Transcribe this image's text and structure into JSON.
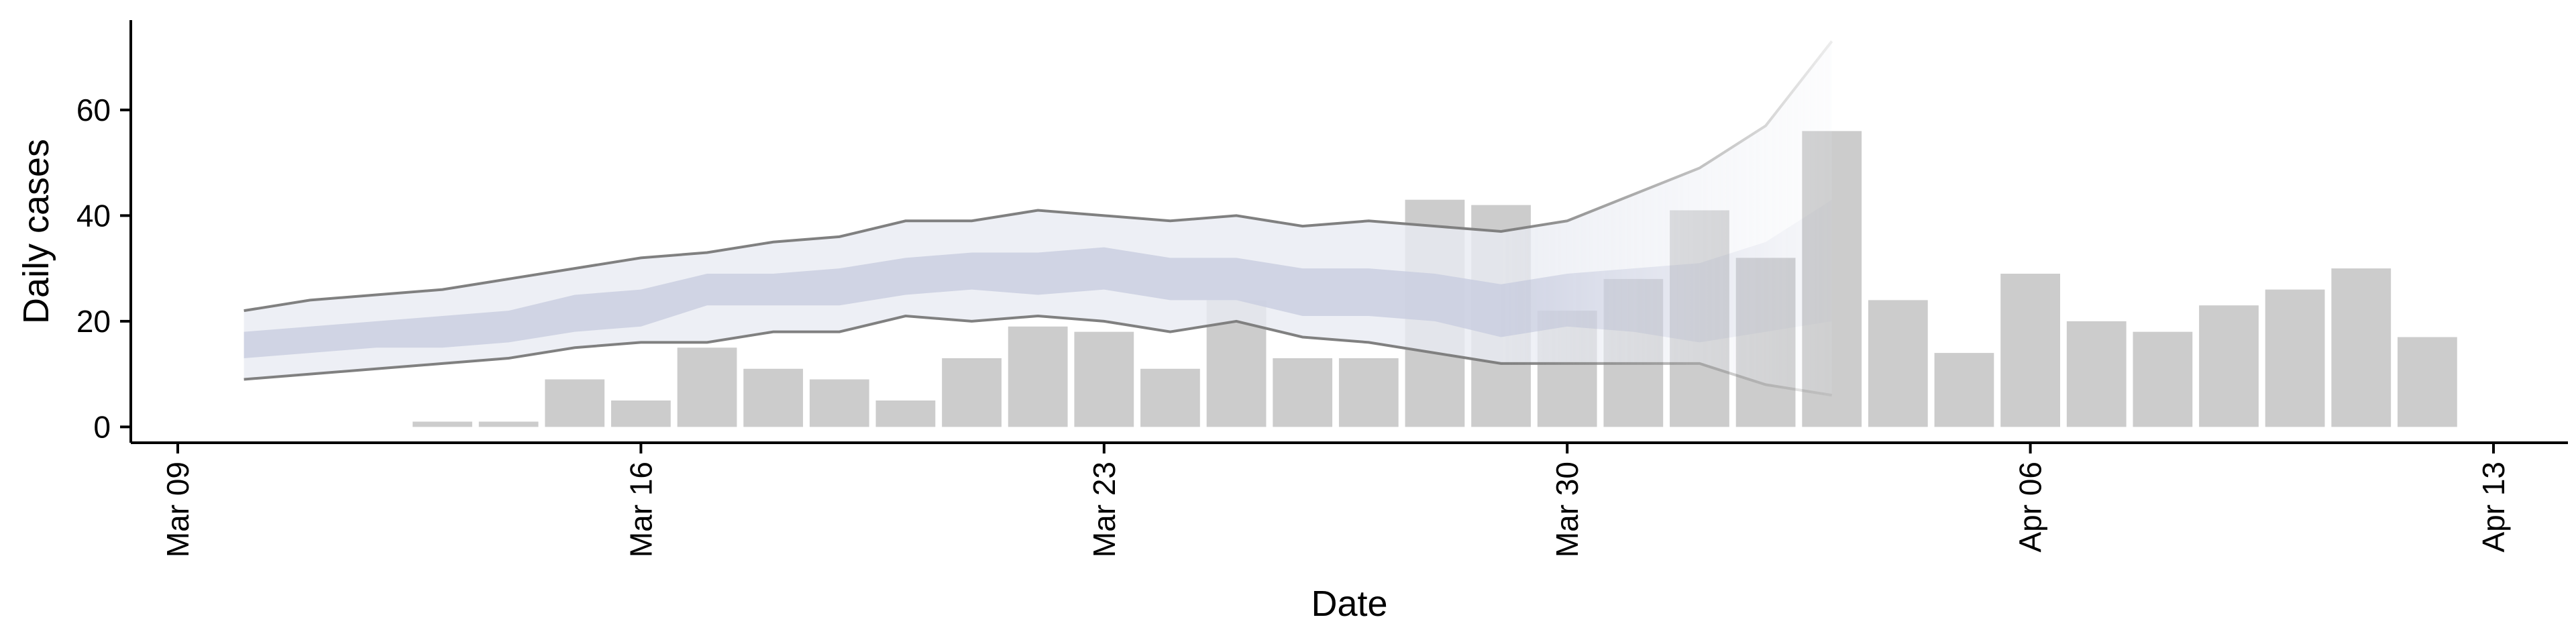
{
  "chart_data": {
    "type": "bar",
    "xlabel": "Date",
    "ylabel": "Daily cases",
    "x_range": [
      "2020-03-08",
      "2020-04-13"
    ],
    "ylim": [
      -3,
      77
    ],
    "grid": false,
    "legend": "none",
    "x_ticks": [
      {
        "date": "2020-03-09",
        "label": "Mar 09"
      },
      {
        "date": "2020-03-16",
        "label": "Mar 16"
      },
      {
        "date": "2020-03-23",
        "label": "Mar 23"
      },
      {
        "date": "2020-03-30",
        "label": "Mar 30"
      },
      {
        "date": "2020-04-06",
        "label": "Apr 06"
      },
      {
        "date": "2020-04-13",
        "label": "Apr 13"
      }
    ],
    "y_ticks": [
      0,
      20,
      40,
      60
    ],
    "bars": {
      "color": "#cccccc",
      "dates": [
        "2020-03-13",
        "2020-03-14",
        "2020-03-15",
        "2020-03-16",
        "2020-03-17",
        "2020-03-18",
        "2020-03-19",
        "2020-03-20",
        "2020-03-21",
        "2020-03-22",
        "2020-03-23",
        "2020-03-24",
        "2020-03-25",
        "2020-03-26",
        "2020-03-27",
        "2020-03-28",
        "2020-03-29",
        "2020-03-30",
        "2020-03-31",
        "2020-04-01",
        "2020-04-02",
        "2020-04-03",
        "2020-04-04",
        "2020-04-05",
        "2020-04-06",
        "2020-04-07",
        "2020-04-08",
        "2020-04-09",
        "2020-04-10",
        "2020-04-11",
        "2020-04-12"
      ],
      "values": [
        1,
        1,
        9,
        5,
        15,
        11,
        9,
        5,
        13,
        19,
        18,
        11,
        24,
        13,
        13,
        43,
        42,
        22,
        28,
        41,
        32,
        56,
        24,
        14,
        29,
        20,
        18,
        23,
        26,
        30,
        17
      ]
    },
    "estimate": {
      "band_colors": {
        "outer": "#e9ebf2",
        "inner": "#c6cbde",
        "line": "#808080"
      },
      "dates": [
        "2020-03-10",
        "2020-03-11",
        "2020-03-12",
        "2020-03-13",
        "2020-03-14",
        "2020-03-15",
        "2020-03-16",
        "2020-03-17",
        "2020-03-18",
        "2020-03-19",
        "2020-03-20",
        "2020-03-21",
        "2020-03-22",
        "2020-03-23",
        "2020-03-24",
        "2020-03-25",
        "2020-03-26",
        "2020-03-27",
        "2020-03-28",
        "2020-03-29",
        "2020-03-30",
        "2020-03-31",
        "2020-04-01",
        "2020-04-02",
        "2020-04-03"
      ],
      "outer_upper": [
        22,
        24,
        25,
        26,
        28,
        30,
        32,
        33,
        35,
        36,
        39,
        39,
        41,
        40,
        39,
        40,
        38,
        39,
        38,
        37,
        39,
        44,
        49,
        57,
        73
      ],
      "outer_lower": [
        9,
        10,
        11,
        12,
        13,
        15,
        16,
        16,
        18,
        18,
        21,
        20,
        21,
        20,
        18,
        20,
        17,
        16,
        14,
        12,
        12,
        12,
        12,
        8,
        6
      ],
      "inner_upper": [
        18,
        19,
        20,
        21,
        22,
        25,
        26,
        29,
        29,
        30,
        32,
        33,
        33,
        34,
        32,
        32,
        30,
        30,
        29,
        27,
        29,
        30,
        31,
        35,
        43
      ],
      "inner_lower": [
        13,
        14,
        15,
        15,
        16,
        18,
        19,
        23,
        23,
        23,
        25,
        26,
        25,
        26,
        24,
        24,
        21,
        21,
        20,
        17,
        19,
        18,
        16,
        18,
        20
      ],
      "fade_from_date": "2020-03-29"
    }
  }
}
